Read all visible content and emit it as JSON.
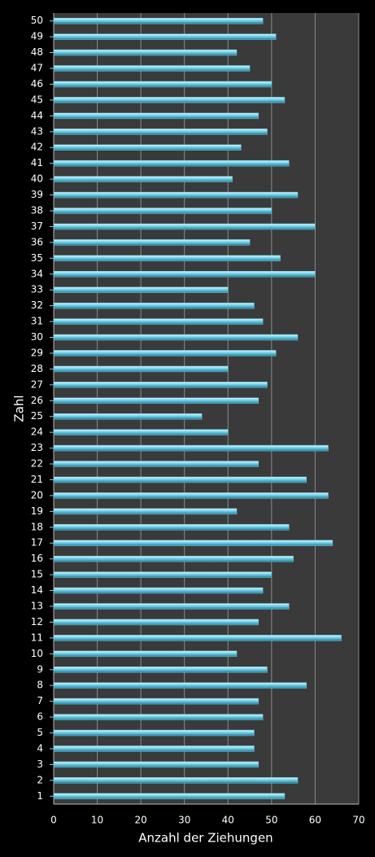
{
  "chart_data": {
    "type": "hbar",
    "x_label": "Anzahl der Ziehungen",
    "y_label": "Zahl",
    "categories": [
      "1",
      "2",
      "3",
      "4",
      "5",
      "6",
      "7",
      "8",
      "9",
      "10",
      "11",
      "12",
      "13",
      "14",
      "15",
      "16",
      "17",
      "18",
      "19",
      "20",
      "21",
      "22",
      "23",
      "24",
      "25",
      "26",
      "27",
      "28",
      "29",
      "30",
      "31",
      "32",
      "33",
      "34",
      "35",
      "36",
      "37",
      "38",
      "39",
      "40",
      "41",
      "42",
      "43",
      "44",
      "45",
      "46",
      "47",
      "48",
      "49",
      "50"
    ],
    "values": [
      53,
      56,
      47,
      46,
      46,
      48,
      47,
      58,
      49,
      42,
      66,
      47,
      54,
      48,
      50,
      55,
      64,
      54,
      42,
      63,
      58,
      47,
      63,
      40,
      34,
      47,
      49,
      40,
      51,
      56,
      48,
      46,
      40,
      60,
      52,
      45,
      60,
      50,
      56,
      41,
      54,
      43,
      49,
      47,
      53,
      50,
      45,
      42,
      51,
      48
    ],
    "color": "#5cc6e0",
    "xlim": [
      0,
      70
    ],
    "xticks": [
      0,
      10,
      20,
      30,
      40,
      50,
      60,
      70
    ],
    "grid": true
  }
}
